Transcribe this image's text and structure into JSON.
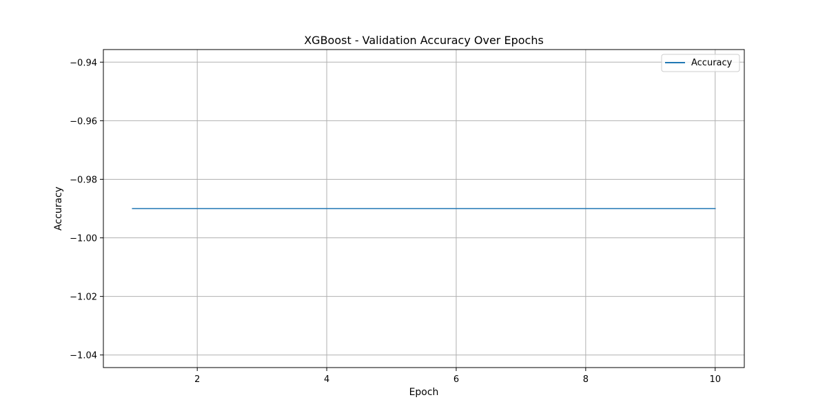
{
  "colors": {
    "series": "#1f77b4",
    "grid": "#b0b0b0",
    "axes": "#000000",
    "background": "#ffffff"
  },
  "chart_data": {
    "type": "line",
    "title": "XGBoost - Validation Accuracy Over Epochs",
    "xlabel": "Epoch",
    "ylabel": "Accuracy",
    "xlim": [
      0.55,
      10.45
    ],
    "ylim": [
      -1.0443,
      -0.9357
    ],
    "x_ticks": [
      2,
      4,
      6,
      8,
      10
    ],
    "x_tick_labels": [
      "2",
      "4",
      "6",
      "8",
      "10"
    ],
    "y_ticks": [
      -0.94,
      -0.96,
      -0.98,
      -1.0,
      -1.02,
      -1.04
    ],
    "y_tick_labels": [
      "−0.94",
      "−0.96",
      "−0.98",
      "−1.00",
      "−1.02",
      "−1.04"
    ],
    "grid": true,
    "legend_position": "top-right",
    "series": [
      {
        "name": "Accuracy",
        "color": "#1f77b4",
        "x": [
          1,
          2,
          3,
          4,
          5,
          6,
          7,
          8,
          9,
          10
        ],
        "y": [
          -0.99,
          -0.99,
          -0.99,
          -0.99,
          -0.99,
          -0.99,
          -0.99,
          -0.99,
          -0.99,
          -0.99
        ]
      }
    ]
  }
}
